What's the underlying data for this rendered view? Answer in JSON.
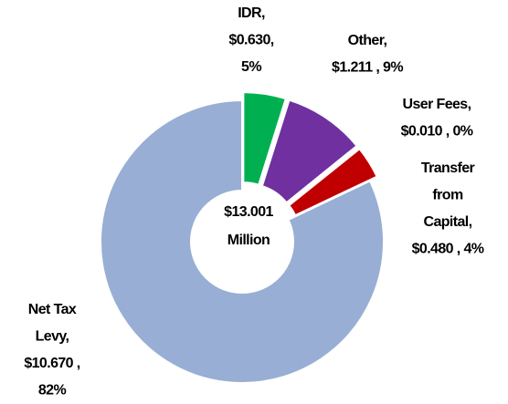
{
  "chart_data": {
    "type": "donut",
    "categories": [
      "IDR",
      "Other",
      "User Fees",
      "Transfer from Capital",
      "Net Tax Levy"
    ],
    "values": [
      0.63,
      1.211,
      0.01,
      0.48,
      10.67
    ],
    "labels": [
      [
        "IDR,",
        "$0.630,",
        "5%"
      ],
      [
        "Other,",
        "$1.211 , 9%"
      ],
      [
        "User Fees,",
        "$0.010 , 0%"
      ],
      [
        "Transfer",
        "from",
        "Capital,",
        "$0.480 , 4%"
      ],
      [
        "Net Tax",
        "Levy,",
        "$10.670 ,",
        "82%"
      ]
    ],
    "colors": [
      "#00b050",
      "#7030a0",
      "#f79646",
      "#c00000",
      "#98aed4"
    ],
    "center_label": [
      "$13.001",
      "Million"
    ]
  }
}
